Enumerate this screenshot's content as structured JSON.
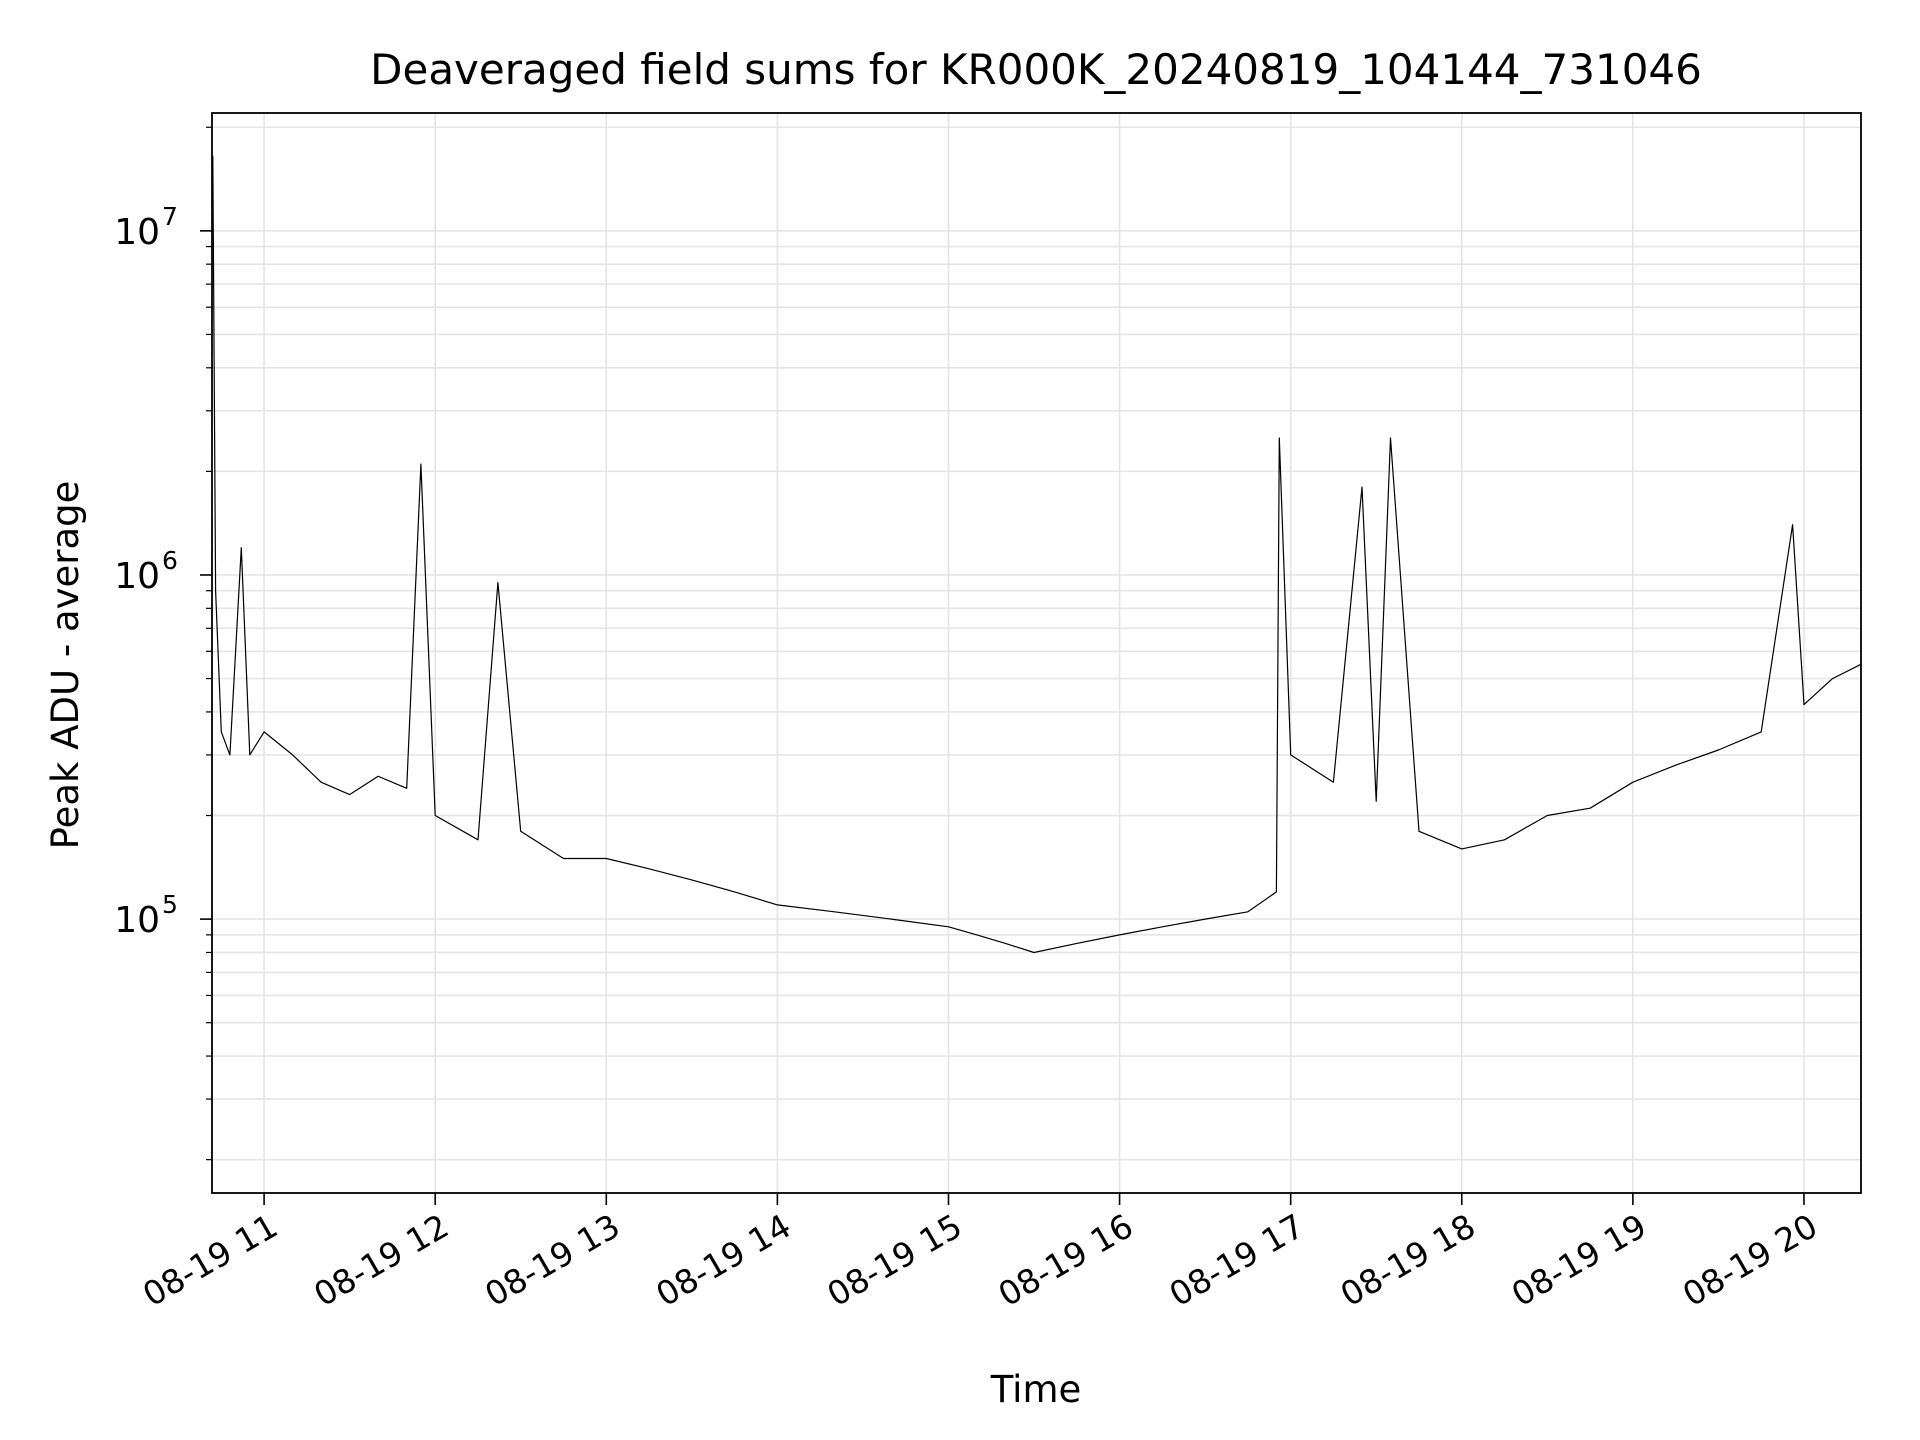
{
  "chart_data": {
    "type": "line",
    "title": "Deaveraged field sums for KR000K_20240819_104144_731046",
    "xlabel": "Time",
    "ylabel": "Peak ADU - average",
    "yscale": "log",
    "ylim": [
      16000,
      22000000
    ],
    "xlim": [
      "2024-08-19 10:41:44",
      "2024-08-19 20:20:00"
    ],
    "x_ticks": [
      {
        "value": "2024-08-19 11:00",
        "label": "08-19 11"
      },
      {
        "value": "2024-08-19 12:00",
        "label": "08-19 12"
      },
      {
        "value": "2024-08-19 13:00",
        "label": "08-19 13"
      },
      {
        "value": "2024-08-19 14:00",
        "label": "08-19 14"
      },
      {
        "value": "2024-08-19 15:00",
        "label": "08-19 15"
      },
      {
        "value": "2024-08-19 16:00",
        "label": "08-19 16"
      },
      {
        "value": "2024-08-19 17:00",
        "label": "08-19 17"
      },
      {
        "value": "2024-08-19 18:00",
        "label": "08-19 18"
      },
      {
        "value": "2024-08-19 19:00",
        "label": "08-19 19"
      },
      {
        "value": "2024-08-19 20:00",
        "label": "08-19 20"
      }
    ],
    "y_ticks": [
      {
        "value": 100000,
        "base": "10",
        "exp": "5"
      },
      {
        "value": 1000000,
        "base": "10",
        "exp": "6"
      },
      {
        "value": 10000000,
        "base": "10",
        "exp": "7"
      }
    ],
    "grid": true,
    "line_color": "#000000",
    "grid_color": "#e5e5e5",
    "series": [
      {
        "x": [
          "2024-08-19 10:42",
          "2024-08-19 10:43",
          "2024-08-19 10:45",
          "2024-08-19 10:48",
          "2024-08-19 10:52",
          "2024-08-19 10:55",
          "2024-08-19 11:00",
          "2024-08-19 11:10",
          "2024-08-19 11:20",
          "2024-08-19 11:30",
          "2024-08-19 11:40",
          "2024-08-19 11:50",
          "2024-08-19 11:55",
          "2024-08-19 12:00",
          "2024-08-19 12:15",
          "2024-08-19 12:22",
          "2024-08-19 12:30",
          "2024-08-19 12:45",
          "2024-08-19 13:00",
          "2024-08-19 13:15",
          "2024-08-19 13:30",
          "2024-08-19 13:45",
          "2024-08-19 14:00",
          "2024-08-19 14:20",
          "2024-08-19 14:40",
          "2024-08-19 15:00",
          "2024-08-19 15:10",
          "2024-08-19 15:20",
          "2024-08-19 15:30",
          "2024-08-19 15:45",
          "2024-08-19 16:00",
          "2024-08-19 16:15",
          "2024-08-19 16:30",
          "2024-08-19 16:45",
          "2024-08-19 16:55",
          "2024-08-19 16:56",
          "2024-08-19 17:00",
          "2024-08-19 17:15",
          "2024-08-19 17:25",
          "2024-08-19 17:30",
          "2024-08-19 17:35",
          "2024-08-19 17:45",
          "2024-08-19 18:00",
          "2024-08-19 18:15",
          "2024-08-19 18:30",
          "2024-08-19 18:45",
          "2024-08-19 19:00",
          "2024-08-19 19:15",
          "2024-08-19 19:30",
          "2024-08-19 19:45",
          "2024-08-19 19:56",
          "2024-08-19 20:00",
          "2024-08-19 20:10",
          "2024-08-19 20:20"
        ],
        "y": [
          16500000,
          900000,
          350000,
          300000,
          1200000,
          300000,
          350000,
          300000,
          250000,
          230000,
          260000,
          240000,
          2100000,
          200000,
          170000,
          950000,
          180000,
          150000,
          150000,
          140000,
          130000,
          120000,
          110000,
          105000,
          100000,
          95000,
          90000,
          85000,
          80000,
          85000,
          90000,
          95000,
          100000,
          105000,
          120000,
          2500000,
          300000,
          250000,
          1800000,
          220000,
          2500000,
          180000,
          160000,
          170000,
          200000,
          210000,
          250000,
          280000,
          310000,
          350000,
          1400000,
          420000,
          500000,
          550000
        ]
      }
    ]
  }
}
